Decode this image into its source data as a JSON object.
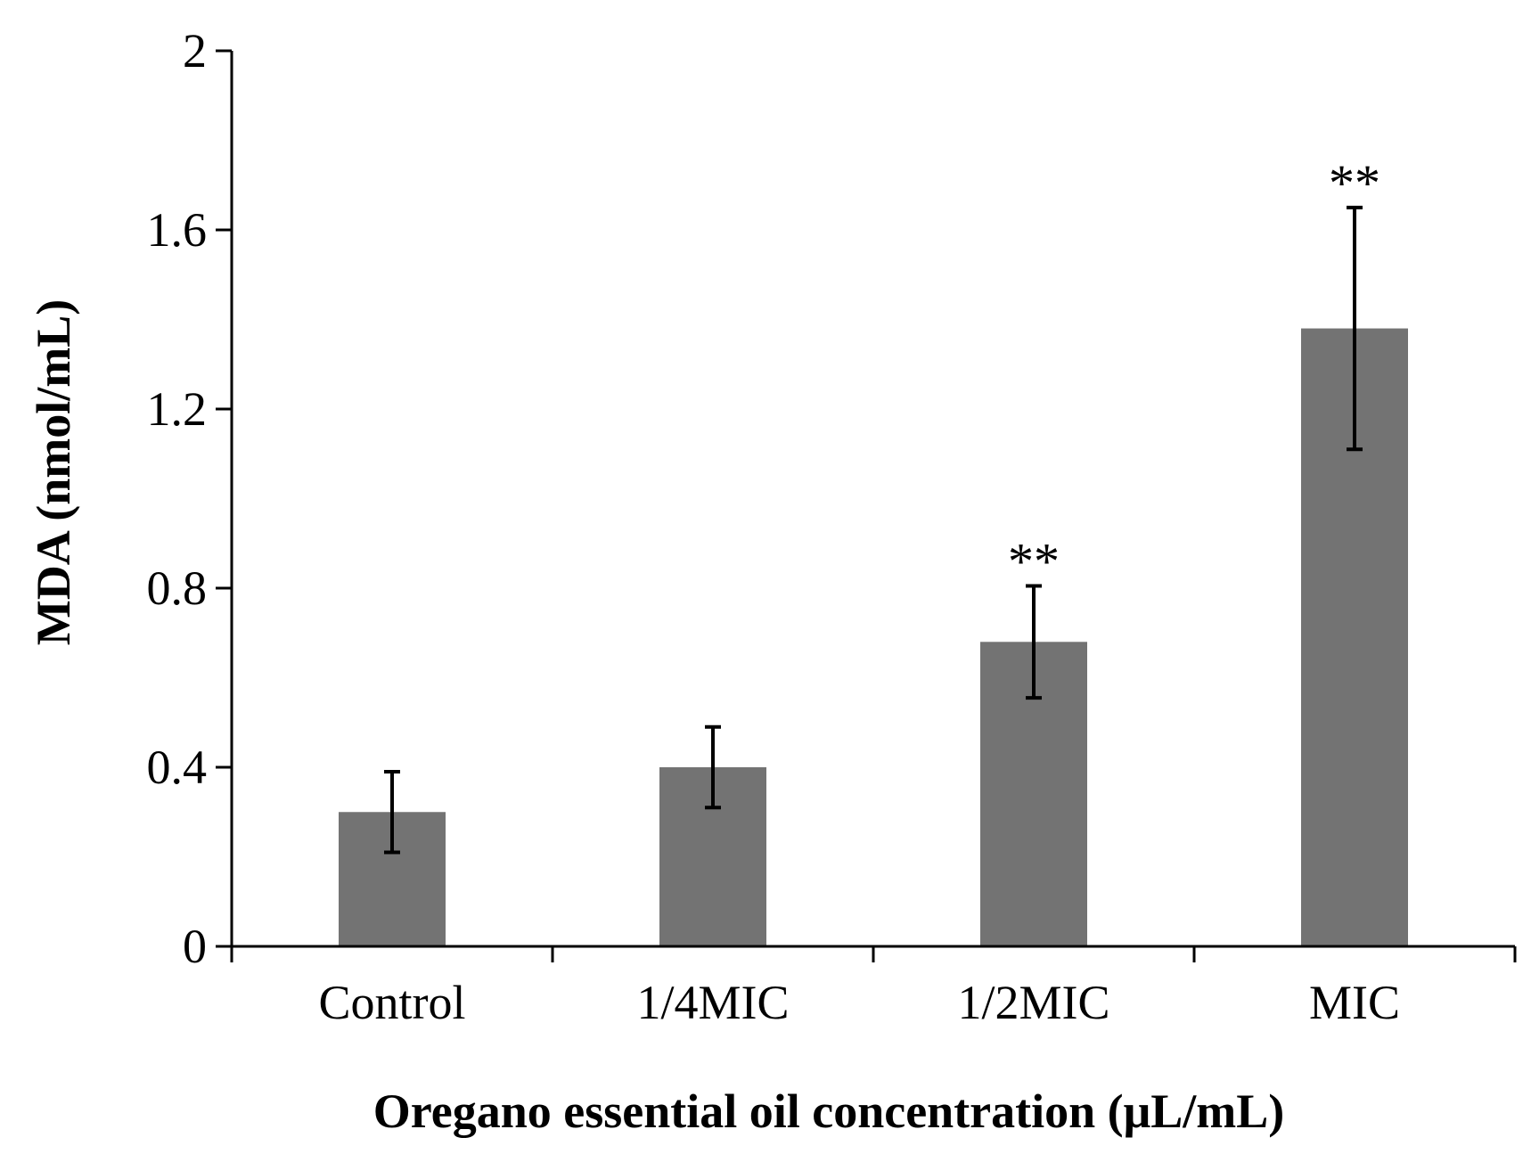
{
  "chart_data": {
    "type": "bar",
    "title": "",
    "xlabel": "Oregano essential oil concentration (μL/mL)",
    "ylabel": "MDA (nmol/mL)",
    "categories": [
      "Control",
      "1/4MIC",
      "1/2MIC",
      "MIC"
    ],
    "values": [
      0.3,
      0.4,
      0.68,
      1.38
    ],
    "errors": [
      0.09,
      0.09,
      0.125,
      0.27
    ],
    "annotations": [
      "",
      "",
      "**",
      "**"
    ],
    "ylim": [
      0,
      2
    ],
    "yticks": [
      0,
      0.4,
      0.8,
      1.2,
      1.6,
      2
    ],
    "ytick_labels": [
      "0",
      "0.4",
      "0.8",
      "1.2",
      "1.6",
      "2"
    ],
    "bar_color": "#737373",
    "grid": false,
    "legend": "none"
  }
}
